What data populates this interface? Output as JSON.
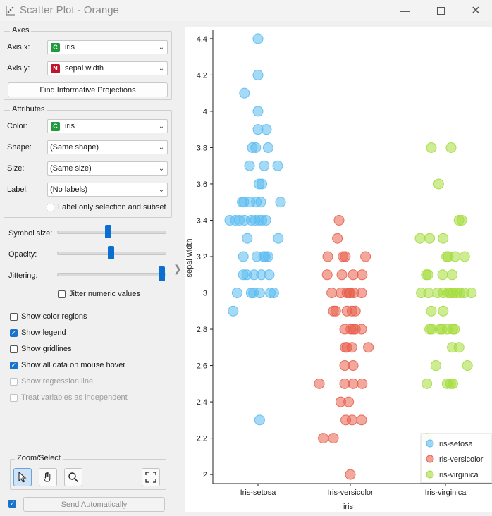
{
  "window": {
    "title": "Scatter Plot - Orange",
    "minimize_icon": "minimize-icon",
    "maximize_icon": "maximize-icon",
    "close_icon": "close-icon"
  },
  "axes": {
    "group_title": "Axes",
    "axis_x_label": "Axis x:",
    "axis_x_value": "iris",
    "axis_x_type": "C",
    "axis_y_label": "Axis y:",
    "axis_y_value": "sepal width",
    "axis_y_type": "N",
    "find_button": "Find Informative Projections"
  },
  "attributes": {
    "group_title": "Attributes",
    "color_label": "Color:",
    "color_value": "iris",
    "color_type": "C",
    "shape_label": "Shape:",
    "shape_value": "(Same shape)",
    "size_label": "Size:",
    "size_value": "(Same size)",
    "label_label": "Label:",
    "label_value": "(No labels)",
    "label_only_selection": "Label only selection and subset"
  },
  "sliders": {
    "symbol_size_label": "Symbol size:",
    "symbol_size_value": 0.5,
    "opacity_label": "Opacity:",
    "opacity_value": 0.53,
    "jittering_label": "Jittering:",
    "jittering_value": 1.0,
    "jitter_numeric_label": "Jitter numeric values"
  },
  "options": {
    "show_color_regions": "Show color regions",
    "show_legend": "Show legend",
    "show_gridlines": "Show gridlines",
    "show_all_data": "Show all data on mouse hover",
    "show_regression": "Show regression line",
    "treat_independent": "Treat variables as independent"
  },
  "zoom": {
    "group_title": "Zoom/Select",
    "tools": [
      "pointer-icon",
      "hand-pan-icon",
      "magnifier-icon",
      "fit-view-icon"
    ]
  },
  "send": {
    "button": "Send Automatically"
  },
  "colors": {
    "setosa": "#5bbcf0",
    "versicolor": "#e8604c",
    "virginica": "#a4dc3c",
    "badge_c": "#1f9a3c",
    "badge_n": "#c0142c"
  },
  "chart_data": {
    "type": "scatter",
    "xlabel": "iris",
    "ylabel": "sepal width",
    "categories": [
      "Iris-setosa",
      "Iris-versicolor",
      "Iris-virginica"
    ],
    "ylim": [
      1.95,
      4.45
    ],
    "yticks": [
      "4.4",
      "4.2",
      "4",
      "3.8",
      "3.6",
      "3.4",
      "3.2",
      "3",
      "2.8",
      "2.6",
      "2.4",
      "2.2",
      "2"
    ],
    "legend": [
      "Iris-setosa",
      "Iris-versicolor",
      "Iris-virginica"
    ],
    "legend_position": "bottom-right",
    "grid": false,
    "series": [
      {
        "name": "Iris-setosa",
        "points": [
          [
            0,
            4.4
          ],
          [
            0,
            4.2
          ],
          [
            -0.24,
            4.1
          ],
          [
            0,
            4.0
          ],
          [
            0,
            3.9
          ],
          [
            0.15,
            3.9
          ],
          [
            -0.1,
            3.8
          ],
          [
            -0.04,
            3.8
          ],
          [
            0.18,
            3.8
          ],
          [
            -0.15,
            3.7
          ],
          [
            0.11,
            3.7
          ],
          [
            0.35,
            3.7
          ],
          [
            0.02,
            3.6
          ],
          [
            0.07,
            3.6
          ],
          [
            -0.28,
            3.5
          ],
          [
            -0.25,
            3.5
          ],
          [
            -0.14,
            3.5
          ],
          [
            -0.03,
            3.5
          ],
          [
            0.05,
            3.5
          ],
          [
            0.4,
            3.5
          ],
          [
            -0.5,
            3.4
          ],
          [
            -0.4,
            3.4
          ],
          [
            -0.33,
            3.4
          ],
          [
            -0.24,
            3.4
          ],
          [
            -0.12,
            3.4
          ],
          [
            -0.05,
            3.4
          ],
          [
            0.02,
            3.4
          ],
          [
            0.07,
            3.4
          ],
          [
            0.14,
            3.4
          ],
          [
            -0.19,
            3.3
          ],
          [
            0.36,
            3.3
          ],
          [
            -0.26,
            3.2
          ],
          [
            -0.02,
            3.2
          ],
          [
            0.1,
            3.2
          ],
          [
            0.13,
            3.2
          ],
          [
            0.18,
            3.2
          ],
          [
            -0.26,
            3.1
          ],
          [
            -0.2,
            3.1
          ],
          [
            -0.07,
            3.1
          ],
          [
            0.06,
            3.1
          ],
          [
            0.2,
            3.1
          ],
          [
            -0.37,
            3.0
          ],
          [
            -0.12,
            3.0
          ],
          [
            -0.08,
            3.0
          ],
          [
            0.03,
            3.0
          ],
          [
            0.22,
            3.0
          ],
          [
            0.28,
            3.0
          ],
          [
            -0.44,
            2.9
          ],
          [
            0.03,
            2.3
          ]
        ]
      },
      {
        "name": "Iris-versicolor",
        "points": [
          [
            -0.2,
            3.4
          ],
          [
            -0.23,
            3.3
          ],
          [
            -0.4,
            3.2
          ],
          [
            -0.13,
            3.2
          ],
          [
            -0.09,
            3.2
          ],
          [
            0.27,
            3.2
          ],
          [
            -0.41,
            3.1
          ],
          [
            -0.15,
            3.1
          ],
          [
            0.05,
            3.1
          ],
          [
            0.21,
            3.1
          ],
          [
            -0.33,
            3.0
          ],
          [
            -0.17,
            3.0
          ],
          [
            -0.06,
            3.0
          ],
          [
            -0.02,
            3.0
          ],
          [
            0.0,
            3.0
          ],
          [
            0.06,
            3.0
          ],
          [
            0.2,
            3.0
          ],
          [
            -0.3,
            2.9
          ],
          [
            -0.26,
            2.9
          ],
          [
            -0.06,
            2.9
          ],
          [
            0.03,
            2.9
          ],
          [
            0.09,
            2.9
          ],
          [
            -0.1,
            2.8
          ],
          [
            0.01,
            2.8
          ],
          [
            0.05,
            2.8
          ],
          [
            0.09,
            2.8
          ],
          [
            0.2,
            2.8
          ],
          [
            -0.09,
            2.7
          ],
          [
            -0.06,
            2.7
          ],
          [
            0.03,
            2.7
          ],
          [
            0.32,
            2.7
          ],
          [
            -0.1,
            2.6
          ],
          [
            0.05,
            2.6
          ],
          [
            -0.55,
            2.5
          ],
          [
            -0.1,
            2.5
          ],
          [
            0.05,
            2.5
          ],
          [
            0.21,
            2.5
          ],
          [
            -0.17,
            2.4
          ],
          [
            -0.03,
            2.4
          ],
          [
            -0.08,
            2.3
          ],
          [
            0.03,
            2.3
          ],
          [
            0.2,
            2.3
          ],
          [
            -0.48,
            2.2
          ],
          [
            -0.3,
            2.2
          ],
          [
            0.0,
            2.0
          ]
        ]
      },
      {
        "name": "Iris-virginica",
        "points": [
          [
            -0.25,
            3.8
          ],
          [
            0.1,
            3.8
          ],
          [
            -0.12,
            3.6
          ],
          [
            0.24,
            3.4
          ],
          [
            0.29,
            3.4
          ],
          [
            -0.45,
            3.3
          ],
          [
            -0.28,
            3.3
          ],
          [
            -0.04,
            3.3
          ],
          [
            0.02,
            3.2
          ],
          [
            0.05,
            3.2
          ],
          [
            0.17,
            3.2
          ],
          [
            0.34,
            3.2
          ],
          [
            -0.34,
            3.1
          ],
          [
            -0.31,
            3.1
          ],
          [
            -0.05,
            3.1
          ],
          [
            0.12,
            3.1
          ],
          [
            -0.43,
            3.0
          ],
          [
            -0.3,
            3.0
          ],
          [
            -0.14,
            3.0
          ],
          [
            -0.04,
            3.0
          ],
          [
            0.05,
            3.0
          ],
          [
            0.09,
            3.0
          ],
          [
            0.14,
            3.0
          ],
          [
            0.2,
            3.0
          ],
          [
            0.26,
            3.0
          ],
          [
            0.33,
            3.0
          ],
          [
            0.46,
            3.0
          ],
          [
            -0.25,
            2.9
          ],
          [
            -0.04,
            2.9
          ],
          [
            -0.28,
            2.8
          ],
          [
            -0.24,
            2.8
          ],
          [
            -0.1,
            2.8
          ],
          [
            -0.06,
            2.8
          ],
          [
            0.03,
            2.8
          ],
          [
            0.13,
            2.8
          ],
          [
            0.16,
            2.8
          ],
          [
            0.12,
            2.7
          ],
          [
            0.24,
            2.7
          ],
          [
            -0.17,
            2.6
          ],
          [
            0.39,
            2.6
          ],
          [
            -0.33,
            2.5
          ],
          [
            0.03,
            2.5
          ],
          [
            0.09,
            2.5
          ],
          [
            0.13,
            2.5
          ],
          [
            -0.33,
            2.2
          ]
        ]
      }
    ]
  }
}
